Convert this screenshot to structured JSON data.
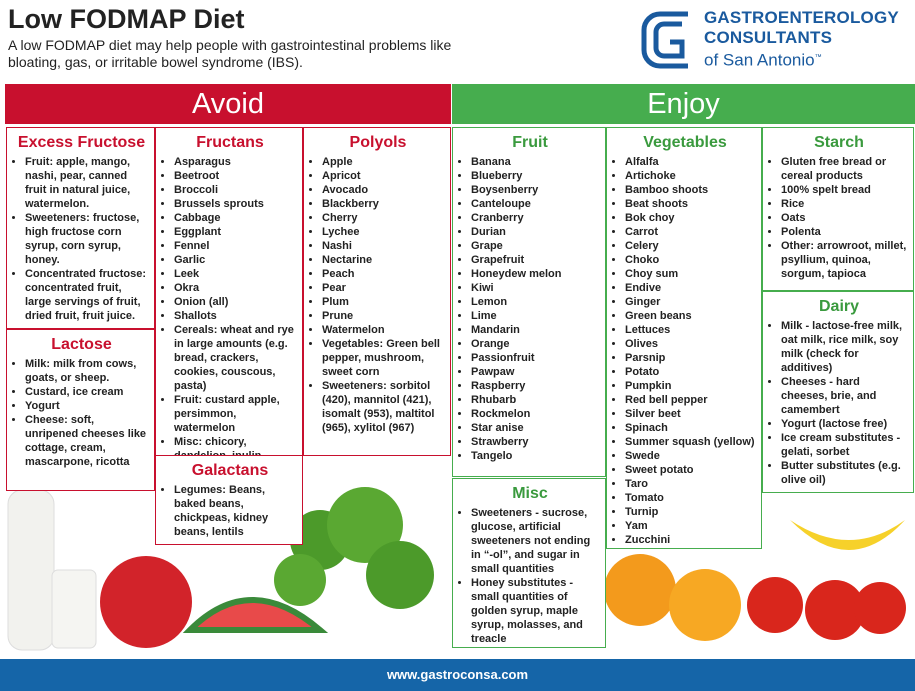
{
  "header": {
    "title": "Low FODMAP Diet",
    "subtitle": "A low FODMAP diet may help people with gastrointestinal problems like bloating, gas, or irritable bowel syndrome (IBS)."
  },
  "logo": {
    "line1": "GASTROENTEROLOGY",
    "line2": "CONSULTANTS",
    "line3": "of San Antonio",
    "mark": "™"
  },
  "avoid": {
    "heading": "Avoid",
    "boxes": [
      {
        "title": "Excess Fructose",
        "items": [
          "Fruit: apple, mango, nashi, pear, canned fruit in natural juice, watermelon.",
          "Sweeteners: fructose, high fructose corn syrup, corn syrup, honey.",
          "Concentrated fructose: concentrated fruit, large servings of fruit, dried fruit, fruit juice."
        ]
      },
      {
        "title": "Lactose",
        "items": [
          "Milk: milk from cows, goats, or sheep.",
          "Custard, ice cream",
          "Yogurt",
          "Cheese: soft, unripened cheeses like cottage, cream, mascarpone, ricotta"
        ]
      },
      {
        "title": "Fructans",
        "items": [
          "Asparagus",
          "Beetroot",
          "Broccoli",
          "Brussels sprouts",
          "Cabbage",
          "Eggplant",
          "Fennel",
          "Garlic",
          "Leek",
          "Okra",
          "Onion (all)",
          "Shallots",
          "Cereals: wheat and rye in large amounts (e.g. bread, crackers, cookies, couscous, pasta)",
          "Fruit: custard apple, persimmon, watermelon",
          "Misc: chicory, dandelion, inulin"
        ]
      },
      {
        "title": "Galactans",
        "items": [
          "Legumes: Beans, baked beans, chickpeas, kidney beans, lentils"
        ]
      },
      {
        "title": "Polyols",
        "items": [
          "Apple",
          "Apricot",
          "Avocado",
          "Blackberry",
          "Cherry",
          "Lychee",
          "Nashi",
          "Nectarine",
          "Peach",
          "Pear",
          "Plum",
          "Prune",
          "Watermelon",
          "Vegetables: Green bell pepper, mushroom, sweet corn",
          "Sweeteners: sorbitol (420), mannitol (421), isomalt (953), maltitol (965), xylitol (967)"
        ]
      }
    ]
  },
  "enjoy": {
    "heading": "Enjoy",
    "boxes": [
      {
        "title": "Fruit",
        "items": [
          "Banana",
          "Blueberry",
          "Boysenberry",
          "Canteloupe",
          "Cranberry",
          "Durian",
          "Grape",
          "Grapefruit",
          "Honeydew melon",
          "Kiwi",
          "Lemon",
          "Lime",
          "Mandarin",
          "Orange",
          "Passionfruit",
          "Pawpaw",
          "Raspberry",
          "Rhubarb",
          "Rockmelon",
          "Star anise",
          "Strawberry",
          "Tangelo"
        ]
      },
      {
        "title": "Misc",
        "items": [
          "Sweeteners - sucrose, glucose, artificial sweeteners not ending in “-ol”, and sugar in small quantities",
          "Honey substitutes - small quantities of golden syrup, maple syrup, molasses, and treacle"
        ]
      },
      {
        "title": "Vegetables",
        "items": [
          "Alfalfa",
          "Artichoke",
          "Bamboo shoots",
          "Beat shoots",
          "Bok choy",
          "Carrot",
          "Celery",
          "Choko",
          "Choy sum",
          "Endive",
          "Ginger",
          "Green beans",
          "Lettuces",
          "Olives",
          "Parsnip",
          "Potato",
          "Pumpkin",
          "Red bell pepper",
          "Silver beet",
          "Spinach",
          "Summer squash (yellow)",
          "Swede",
          "Sweet potato",
          "Taro",
          "Tomato",
          "Turnip",
          "Yam",
          "Zucchini"
        ]
      },
      {
        "title": "Starch",
        "items": [
          "Gluten free bread or cereal products",
          "100% spelt bread",
          "Rice",
          "Oats",
          "Polenta",
          "Other: arrowroot, millet, psyllium, quinoa, sorgum, tapioca"
        ]
      },
      {
        "title": "Dairy",
        "items": [
          "Milk - lactose-free milk, oat milk, rice milk, soy milk (check for additives)",
          "Cheeses - hard cheeses, brie, and camembert",
          "Yogurt (lactose free)",
          "Ice cream substitutes - gelati, sorbet",
          "Butter substitutes (e.g. olive oil)"
        ]
      }
    ]
  },
  "footer": {
    "url": "www.gastroconsa.com"
  }
}
